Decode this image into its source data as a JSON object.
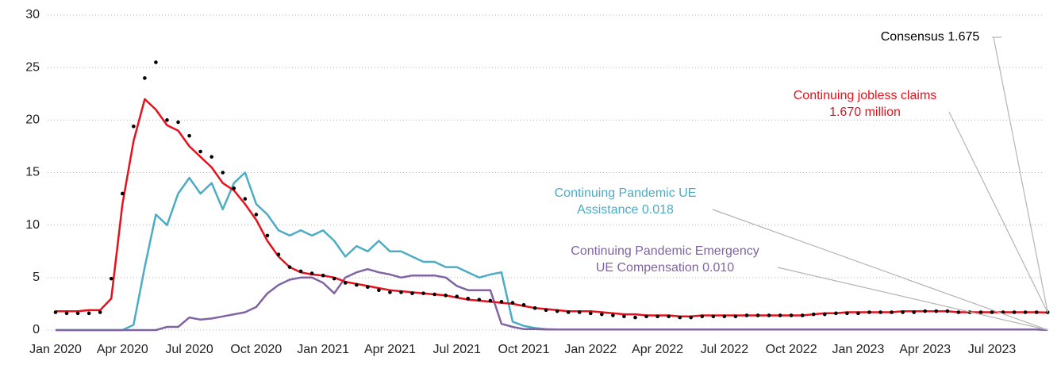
{
  "chart_data": {
    "type": "line",
    "categories": [
      "Jan 2020",
      null,
      null,
      null,
      null,
      null,
      "Apr 2020",
      null,
      null,
      null,
      null,
      null,
      "Jul 2020",
      null,
      null,
      null,
      null,
      null,
      "Oct 2020",
      null,
      null,
      null,
      null,
      null,
      "Jan 2021",
      null,
      null,
      null,
      null,
      null,
      "Apr 2021",
      null,
      null,
      null,
      null,
      null,
      "Jul 2021",
      null,
      null,
      null,
      null,
      null,
      "Oct 2021",
      null,
      null,
      null,
      null,
      null,
      "Jan 2022",
      null,
      null,
      null,
      null,
      null,
      "Apr 2022",
      null,
      null,
      null,
      null,
      null,
      "Jul 2022",
      null,
      null,
      null,
      null,
      null,
      "Oct 2022",
      null,
      null,
      null,
      null,
      null,
      "Jan 2023",
      null,
      null,
      null,
      null,
      null,
      "Apr 2023",
      null,
      null,
      null,
      null,
      null,
      "Jul 2023",
      null,
      null,
      null,
      null,
      null
    ],
    "series": [
      {
        "name": "Continuing jobless claims",
        "color": "#e8101a",
        "style": "line",
        "values": [
          1.8,
          1.8,
          1.8,
          1.9,
          1.9,
          3.0,
          12,
          18,
          22,
          21,
          19.5,
          19,
          17.5,
          16.5,
          15.5,
          14,
          13.3,
          12,
          10.5,
          8.5,
          7,
          6,
          5.5,
          5.3,
          5.2,
          5.0,
          4.6,
          4.4,
          4.2,
          4.0,
          3.8,
          3.7,
          3.6,
          3.5,
          3.4,
          3.3,
          3.1,
          2.9,
          2.8,
          2.7,
          2.6,
          2.5,
          2.3,
          2.1,
          2.0,
          1.9,
          1.8,
          1.8,
          1.8,
          1.7,
          1.6,
          1.5,
          1.5,
          1.4,
          1.4,
          1.4,
          1.3,
          1.3,
          1.4,
          1.4,
          1.4,
          1.4,
          1.4,
          1.4,
          1.4,
          1.4,
          1.4,
          1.4,
          1.5,
          1.6,
          1.6,
          1.7,
          1.7,
          1.7,
          1.7,
          1.7,
          1.8,
          1.8,
          1.8,
          1.8,
          1.8,
          1.7,
          1.7,
          1.7,
          1.7,
          1.7,
          1.7,
          1.7,
          1.7,
          1.67
        ]
      },
      {
        "color": "#000000",
        "style": "dots",
        "values": [
          1.7,
          1.6,
          1.6,
          1.6,
          1.7,
          4.9,
          13,
          19.4,
          24,
          25.5,
          20,
          19.8,
          18.5,
          17,
          16.5,
          15,
          13.5,
          12.5,
          11,
          9,
          7.2,
          6,
          5.6,
          5.4,
          5.2,
          4.9,
          4.5,
          4.3,
          4.1,
          3.8,
          3.6,
          3.6,
          3.5,
          3.5,
          3.4,
          3.3,
          3.2,
          3.0,
          2.9,
          2.8,
          2.7,
          2.6,
          2.4,
          2.1,
          1.9,
          1.8,
          1.7,
          1.7,
          1.6,
          1.5,
          1.4,
          1.3,
          1.2,
          1.3,
          1.3,
          1.3,
          1.2,
          1.2,
          1.3,
          1.3,
          1.3,
          1.3,
          1.4,
          1.4,
          1.4,
          1.4,
          1.4,
          1.4,
          1.5,
          1.5,
          1.6,
          1.6,
          1.6,
          1.7,
          1.7,
          1.7,
          1.7,
          1.7,
          1.8,
          1.8,
          1.8,
          1.7,
          1.7,
          1.7,
          1.7,
          1.7,
          1.7,
          1.7,
          1.7,
          1.7
        ]
      },
      {
        "name": "Continuing Pandemic UE Assistance",
        "color": "#4bacc6",
        "style": "line",
        "values": [
          0,
          0,
          0,
          0,
          0,
          0,
          0,
          0.5,
          6,
          11,
          10,
          13,
          14.5,
          13,
          14,
          11.5,
          14,
          15,
          12,
          11,
          9.5,
          9,
          9.5,
          9,
          9.5,
          8.5,
          7,
          8,
          7.5,
          8.5,
          7.5,
          7.5,
          7,
          6.5,
          6.5,
          6,
          6,
          5.5,
          5,
          5.3,
          5.5,
          0.8,
          0.4,
          0.2,
          0.1,
          0.05,
          0.05,
          0.05,
          0.05,
          0.05,
          0.05,
          0.05,
          0.05,
          0.05,
          0.05,
          0.05,
          0.05,
          0.05,
          0.05,
          0.05,
          0.05,
          0.05,
          0.05,
          0.05,
          0.05,
          0.05,
          0.05,
          0.05,
          0.05,
          0.05,
          0.05,
          0.05,
          0.05,
          0.05,
          0.05,
          0.05,
          0.05,
          0.05,
          0.05,
          0.05,
          0.05,
          0.05,
          0.05,
          0.05,
          0.05,
          0.05,
          0.05,
          0.05,
          0.05,
          0.018
        ]
      },
      {
        "name": "Continuing Pandemic Emergency UE Compensation",
        "color": "#8064a2",
        "style": "line",
        "values": [
          0,
          0,
          0,
          0,
          0,
          0,
          0,
          0,
          0,
          0,
          0.3,
          0.3,
          1.2,
          1,
          1.1,
          1.3,
          1.5,
          1.7,
          2.2,
          3.5,
          4.3,
          4.8,
          5,
          5,
          4.5,
          3.5,
          5,
          5.5,
          5.8,
          5.5,
          5.3,
          5,
          5.2,
          5.2,
          5.2,
          5,
          4.2,
          3.8,
          3.8,
          3.8,
          0.6,
          0.3,
          0.1,
          0.1,
          0.05,
          0.05,
          0.05,
          0.05,
          0.05,
          0.05,
          0.05,
          0.05,
          0.05,
          0.05,
          0.05,
          0.05,
          0.05,
          0.05,
          0.05,
          0.05,
          0.05,
          0.05,
          0.05,
          0.05,
          0.05,
          0.05,
          0.05,
          0.05,
          0.05,
          0.05,
          0.05,
          0.05,
          0.05,
          0.05,
          0.05,
          0.05,
          0.05,
          0.05,
          0.05,
          0.05,
          0.05,
          0.05,
          0.05,
          0.05,
          0.05,
          0.05,
          0.05,
          0.05,
          0.05,
          0.01
        ]
      }
    ],
    "annotations": [
      {
        "lines": [
          "Consensus 1.675"
        ],
        "color": "#000000",
        "series": 1
      },
      {
        "lines": [
          "Continuing jobless claims",
          "1.670 million"
        ],
        "color": "#e8101a",
        "series": 0
      },
      {
        "lines": [
          "Continuing Pandemic UE",
          "Assistance 0.018"
        ],
        "color": "#4bacc6",
        "series": 2
      },
      {
        "lines": [
          "Continuing Pandemic Emergency",
          "UE Compensation 0.010"
        ],
        "color": "#8064a2",
        "series": 3
      }
    ],
    "ylim": [
      0,
      30
    ],
    "yticks": [
      0,
      5,
      10,
      15,
      20,
      25,
      30
    ],
    "grid": true
  }
}
